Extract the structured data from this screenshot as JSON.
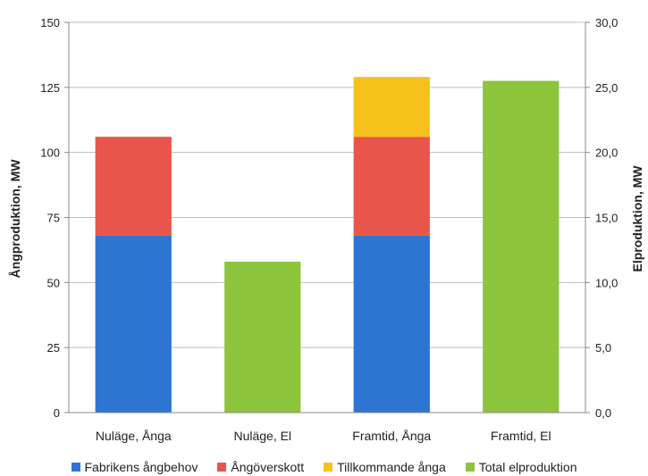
{
  "chart_data": {
    "type": "bar",
    "stacked": true,
    "categories": [
      "Nuläge, Ånga",
      "Nuläge, El",
      "Framtid, Ånga",
      "Framtid, El"
    ],
    "series": [
      {
        "name": "Fabrikens ångbehov",
        "color": "#2e75d1",
        "axis": "left",
        "values": [
          68,
          null,
          68,
          null
        ]
      },
      {
        "name": "Ångöverskott",
        "color": "#e8554a",
        "axis": "left",
        "values": [
          38,
          null,
          38,
          null
        ]
      },
      {
        "name": "Tillkommande ånga",
        "color": "#f5c21b",
        "axis": "left",
        "values": [
          null,
          null,
          23,
          null
        ]
      },
      {
        "name": "Total elproduktion",
        "color": "#8cc43c",
        "axis": "right",
        "values": [
          null,
          11.6,
          null,
          25.5
        ]
      }
    ],
    "y_left": {
      "label": "Ångproduktion, MW",
      "min": 0,
      "max": 150,
      "ticks": [
        "0",
        "25",
        "50",
        "75",
        "100",
        "125",
        "150"
      ]
    },
    "y_right": {
      "label": "Elproduktion, MW",
      "min": 0,
      "max": 30,
      "ticks": [
        "0,0",
        "5,0",
        "10,0",
        "15,0",
        "20,0",
        "25,0",
        "30,0"
      ]
    },
    "grid": true,
    "legend_position": "bottom"
  }
}
